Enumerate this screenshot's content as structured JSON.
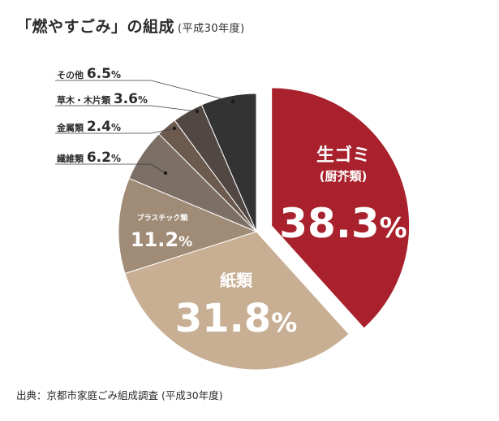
{
  "title": "「燃やすごみ」の組成",
  "title_sub": "(平成30年度)",
  "source": "出典：京都市家庭ごみ組成調査 (平成30年度)",
  "chart_data": {
    "type": "pie",
    "title": "「燃やすごみ」の組成 (平成30年度)",
    "unit": "%",
    "slices": [
      {
        "label": "生ゴミ",
        "sublabel": "(厨芥類)",
        "value": 38.3,
        "value_text": "38.3",
        "color": "#a8212c",
        "exploded": true
      },
      {
        "label": "紙類",
        "value": 31.8,
        "value_text": "31.8",
        "color": "#c8ae93"
      },
      {
        "label": "プラスチック類",
        "value": 11.2,
        "value_text": "11.2",
        "color": "#9f8b76"
      },
      {
        "label": "繊維類",
        "value": 6.2,
        "value_text": "6.2",
        "color": "#7c7066"
      },
      {
        "label": "金属類",
        "value": 2.4,
        "value_text": "2.4",
        "color": "#6b5a4d"
      },
      {
        "label": "草木・木片類",
        "value": 3.6,
        "value_text": "3.6",
        "color": "#514844"
      },
      {
        "label": "その他",
        "value": 6.5,
        "value_text": "6.5",
        "color": "#333333"
      }
    ]
  }
}
